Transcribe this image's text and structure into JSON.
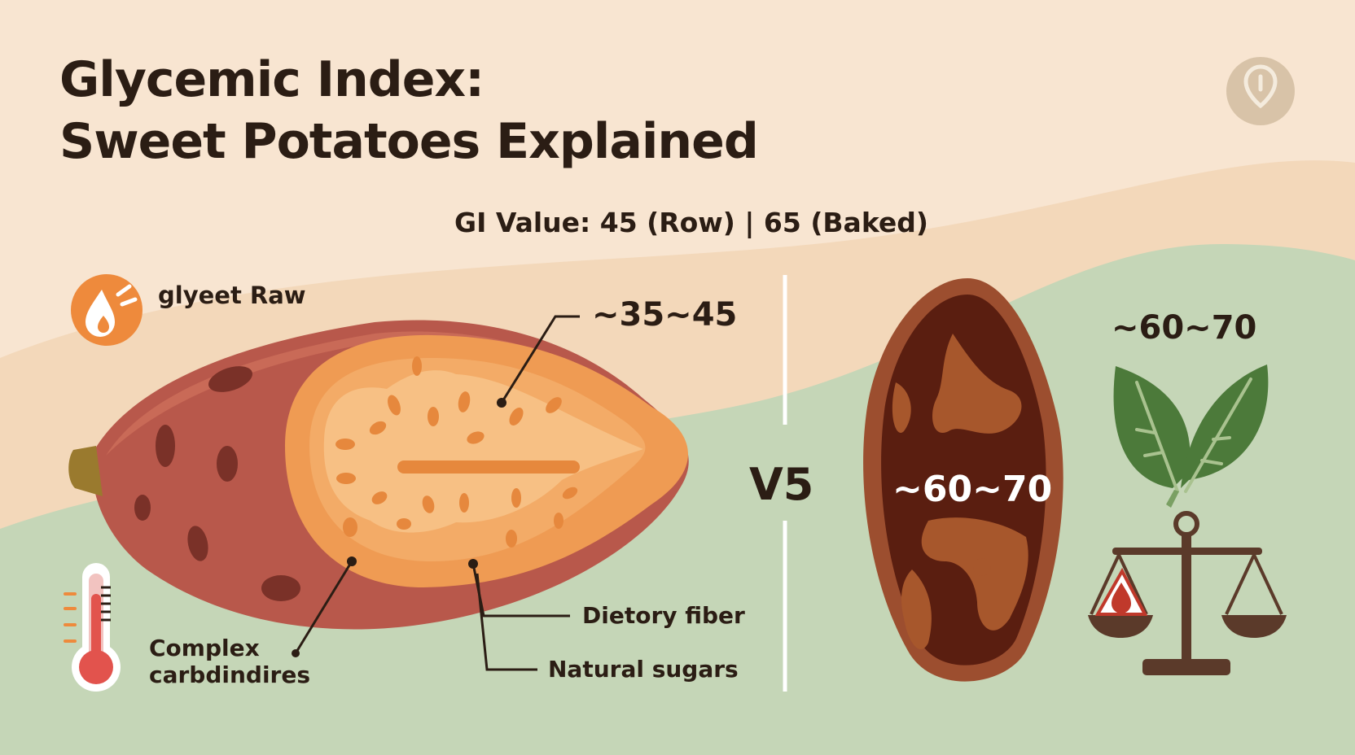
{
  "title": {
    "line1": "Glycemic Index:",
    "line2": "Sweet Potatoes Explained"
  },
  "subtitle": "GI Value: 45 (Row) | 65 (Baked)",
  "raw_section": {
    "label": "glyeet Raw",
    "icon": "flame-drop-icon",
    "gi_range": "~35~45",
    "callouts": {
      "complex_carbs": [
        "Complex",
        "carbdindires"
      ],
      "fiber": "Dietory fiber",
      "sugars": "Natural sugars"
    }
  },
  "divider_label": "V5",
  "baked_section": {
    "gi_range_center": "~60~70",
    "gi_range_top": "~60~70",
    "icons": [
      "leaf-icon",
      "balance-scale-icon",
      "blood-drop-icon"
    ]
  },
  "colors": {
    "background": "#f8e5d1",
    "green_hill": "#c5d6b7",
    "skin": "#b8584b",
    "flesh_outer": "#ef9b53",
    "flesh_inner": "#f7c084",
    "baked_skin": "#9c4e2f",
    "baked_flesh": "#5a1e10",
    "text": "#2b1d14",
    "accent_orange": "#ee8a3c",
    "leaf": "#4c7a3a"
  }
}
